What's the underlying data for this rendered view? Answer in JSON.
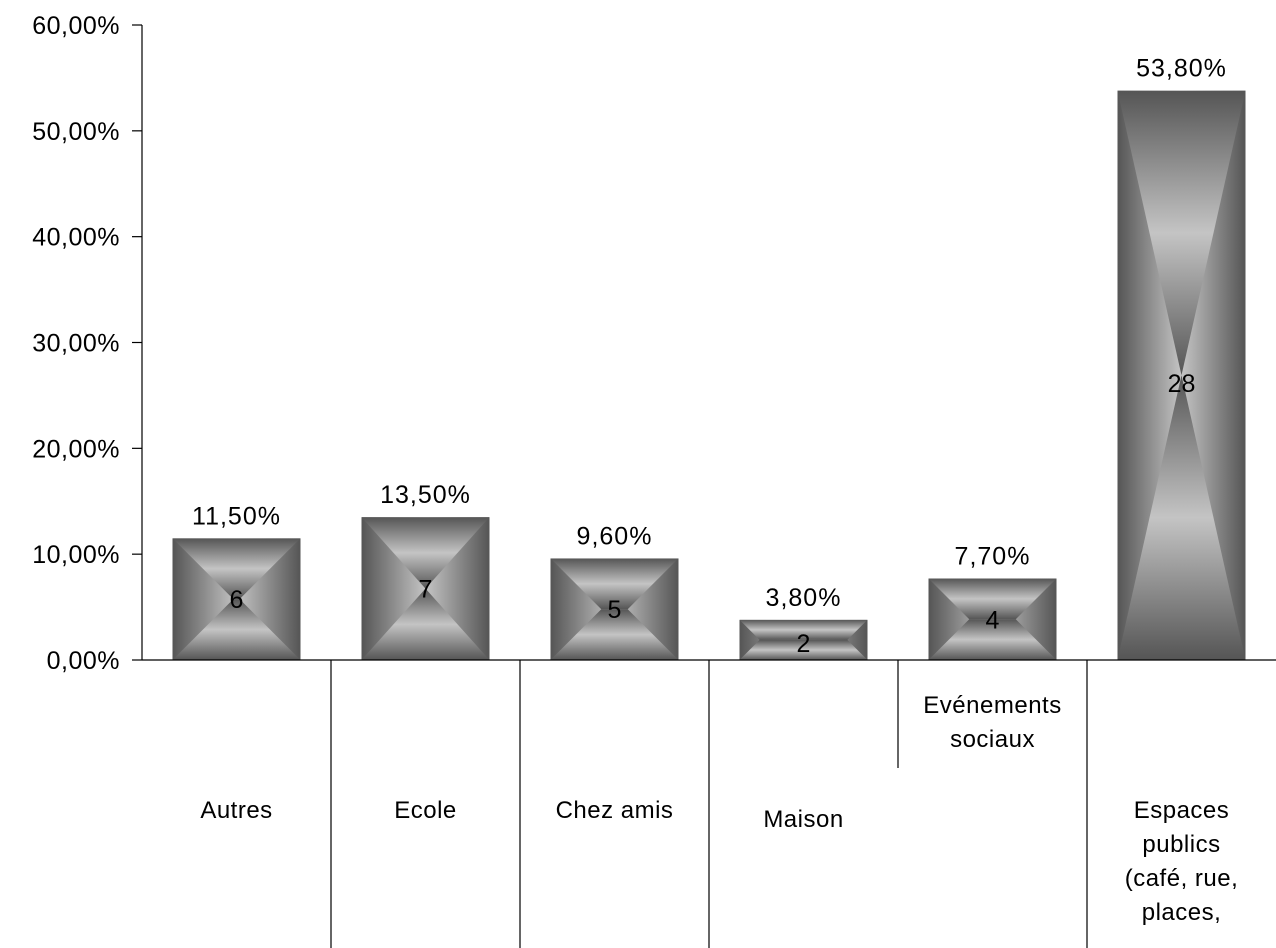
{
  "chart_data": {
    "type": "bar",
    "categories": [
      [
        "Autres"
      ],
      [
        "Ecole"
      ],
      [
        "Chez amis"
      ],
      [
        "Maison"
      ],
      [
        "Evénements",
        "sociaux"
      ],
      [
        "Espaces",
        "publics",
        "(café, rue,",
        "places,"
      ]
    ],
    "values": [
      11.5,
      13.5,
      9.6,
      3.8,
      7.7,
      53.8
    ],
    "data_labels": [
      "11,50%",
      "13,50%",
      "9,60%",
      "3,80%",
      "7,70%",
      "53,80%"
    ],
    "counts": [
      "6",
      "7",
      "5",
      "2",
      "4",
      "28"
    ],
    "y_ticks": [
      0,
      10,
      20,
      30,
      40,
      50,
      60
    ],
    "y_tick_labels": [
      "0,00%",
      "10,00%",
      "20,00%",
      "30,00%",
      "40,00%",
      "50,00%",
      "60,00%"
    ],
    "ylim": [
      0,
      60
    ],
    "grid": false,
    "legend": "none",
    "colors": {
      "bar_dark": "#5a5a5a",
      "bar_light": "#c8c8c8",
      "axis": "#000000"
    }
  }
}
